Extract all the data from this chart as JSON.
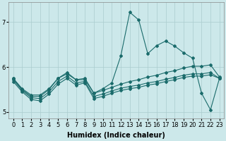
{
  "xlabel": "Humidex (Indice chaleur)",
  "background_color": "#cce8ea",
  "grid_color": "#aaccce",
  "line_color": "#1a6b6b",
  "x": [
    0,
    1,
    2,
    3,
    4,
    5,
    6,
    7,
    8,
    9,
    10,
    11,
    12,
    13,
    14,
    15,
    16,
    17,
    18,
    19,
    20,
    21,
    22,
    23
  ],
  "line_main": [
    5.75,
    5.5,
    5.35,
    5.35,
    5.5,
    5.75,
    5.85,
    5.72,
    5.75,
    5.42,
    5.52,
    5.65,
    6.25,
    7.22,
    7.05,
    6.3,
    6.48,
    6.58,
    6.47,
    6.32,
    6.2,
    5.42,
    5.05,
    5.75
  ],
  "line_top": [
    5.75,
    5.52,
    5.38,
    5.38,
    5.52,
    5.75,
    5.88,
    5.72,
    5.72,
    5.42,
    5.48,
    5.55,
    5.62,
    5.68,
    5.72,
    5.78,
    5.82,
    5.88,
    5.92,
    5.98,
    6.02,
    6.02,
    6.05,
    5.78
  ],
  "line_mid1": [
    5.72,
    5.48,
    5.32,
    5.3,
    5.45,
    5.68,
    5.8,
    5.65,
    5.68,
    5.35,
    5.4,
    5.47,
    5.53,
    5.57,
    5.6,
    5.65,
    5.68,
    5.73,
    5.77,
    5.82,
    5.85,
    5.85,
    5.88,
    5.75
  ],
  "line_bot": [
    5.68,
    5.45,
    5.28,
    5.25,
    5.4,
    5.62,
    5.75,
    5.6,
    5.65,
    5.3,
    5.35,
    5.42,
    5.48,
    5.52,
    5.55,
    5.6,
    5.63,
    5.68,
    5.72,
    5.77,
    5.8,
    5.8,
    5.83,
    5.75
  ],
  "ylim": [
    4.85,
    7.45
  ],
  "yticks": [
    5,
    6,
    7
  ],
  "label_fontsize": 7,
  "tick_fontsize": 6
}
